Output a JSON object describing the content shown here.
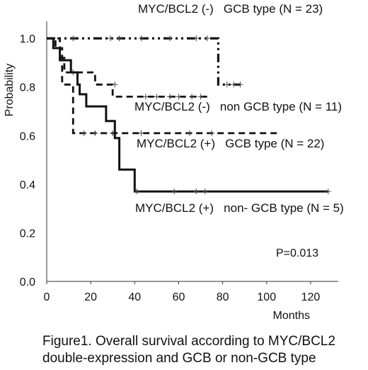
{
  "chart_data": {
    "type": "line",
    "subtype": "kaplan-meier step",
    "ylabel": "Probability",
    "xlabel": "Months",
    "xlim": [
      0,
      130
    ],
    "ylim": [
      0,
      1.05
    ],
    "x_ticks": [
      "0",
      "20",
      "40",
      "60",
      "80",
      "100",
      "120"
    ],
    "y_ticks": [
      "0.0",
      "0.2",
      "0.4",
      "0.6",
      "0.8",
      "1.0"
    ],
    "annotation": "P=0.013",
    "series": [
      {
        "name": "MYC/BCL2 (-)   GCB type (N = 23)",
        "line_style": "dash-dot-dot",
        "steps": [
          [
            0,
            1.0
          ],
          [
            78,
            1.0
          ],
          [
            78,
            0.81
          ],
          [
            88,
            0.81
          ]
        ],
        "censored": [
          [
            12,
            1.0
          ],
          [
            29,
            1.0
          ],
          [
            33,
            1.0
          ],
          [
            43,
            1.0
          ],
          [
            56,
            1.0
          ],
          [
            68,
            1.0
          ],
          [
            73,
            1.0
          ],
          [
            82,
            0.81
          ],
          [
            85,
            0.81
          ],
          [
            88,
            0.81
          ]
        ]
      },
      {
        "name": "MYC/BCL2 (-)   non GCB type (N = 11)",
        "line_style": "dashed",
        "steps": [
          [
            0,
            1.0
          ],
          [
            6,
            1.0
          ],
          [
            6,
            0.92
          ],
          [
            8,
            0.92
          ],
          [
            8,
            0.86
          ],
          [
            22,
            0.86
          ],
          [
            22,
            0.81
          ],
          [
            30,
            0.81
          ],
          [
            30,
            0.76
          ],
          [
            73,
            0.76
          ]
        ],
        "censored": [
          [
            12,
            0.86
          ],
          [
            31,
            0.81
          ],
          [
            45,
            0.76
          ],
          [
            50,
            0.76
          ],
          [
            56,
            0.76
          ],
          [
            60,
            0.76
          ],
          [
            66,
            0.76
          ],
          [
            70,
            0.76
          ]
        ]
      },
      {
        "name": "MYC/BCL2 (+)   GCB type (N = 22)",
        "line_style": "dashed",
        "steps": [
          [
            0,
            1.0
          ],
          [
            4,
            1.0
          ],
          [
            4,
            0.96
          ],
          [
            7,
            0.96
          ],
          [
            7,
            0.81
          ],
          [
            12,
            0.81
          ],
          [
            12,
            0.61
          ],
          [
            106,
            0.61
          ]
        ],
        "censored": [
          [
            17,
            0.61
          ],
          [
            22,
            0.61
          ],
          [
            30,
            0.61
          ],
          [
            43,
            0.61
          ],
          [
            65,
            0.61
          ],
          [
            75,
            0.61
          ]
        ]
      },
      {
        "name": "MYC/BCL2 (+)   non- GCB type (N = 5)",
        "line_style": "solid",
        "steps": [
          [
            0,
            1.0
          ],
          [
            3,
            1.0
          ],
          [
            3,
            0.96
          ],
          [
            6,
            0.96
          ],
          [
            6,
            0.91
          ],
          [
            11,
            0.91
          ],
          [
            11,
            0.86
          ],
          [
            14,
            0.86
          ],
          [
            14,
            0.81
          ],
          [
            15,
            0.81
          ],
          [
            15,
            0.77
          ],
          [
            18,
            0.77
          ],
          [
            18,
            0.72
          ],
          [
            27,
            0.72
          ],
          [
            27,
            0.66
          ],
          [
            31,
            0.66
          ],
          [
            31,
            0.59
          ],
          [
            33,
            0.59
          ],
          [
            33,
            0.46
          ],
          [
            40,
            0.46
          ],
          [
            40,
            0.37
          ],
          [
            128,
            0.37
          ]
        ],
        "censored": [
          [
            41,
            0.37
          ],
          [
            58,
            0.37
          ],
          [
            68,
            0.37
          ],
          [
            72,
            0.37
          ],
          [
            128,
            0.37
          ]
        ]
      }
    ]
  },
  "caption": {
    "line1": "Figure1. Overall survival according to MYC/BCL2",
    "line2": "double-expression and GCB or non-GCB type"
  }
}
